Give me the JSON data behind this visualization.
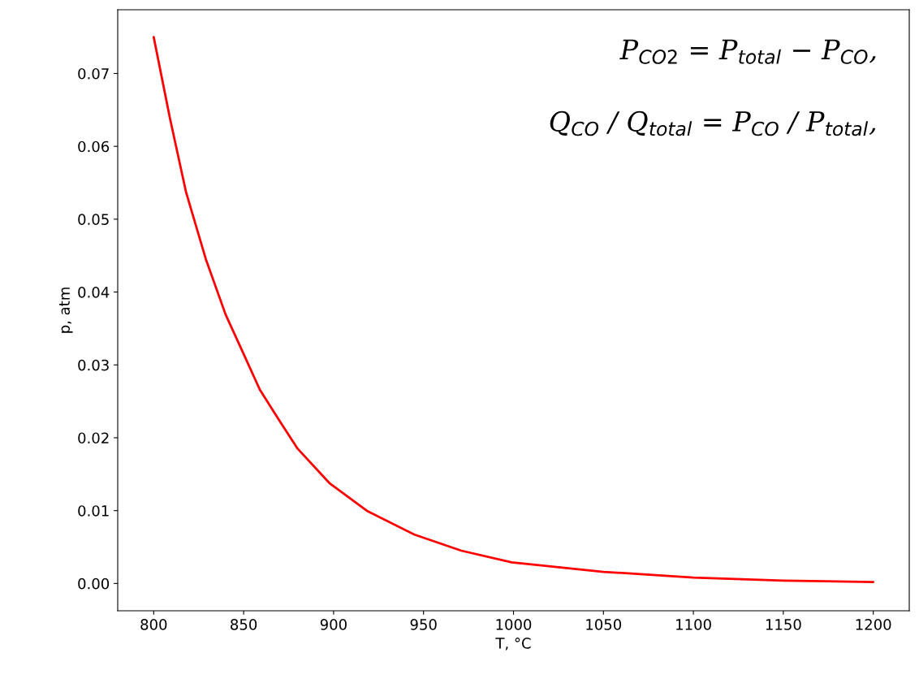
{
  "chart_data": {
    "type": "line",
    "xlabel": "T, °C",
    "ylabel": "p, atm",
    "x": [
      800,
      809,
      818,
      829,
      840,
      850,
      859,
      870,
      880,
      898,
      919,
      945,
      971,
      999,
      1050,
      1100,
      1150,
      1200
    ],
    "series": [
      {
        "color": "#ff0000",
        "values": [
          0.075,
          0.0639,
          0.0537,
          0.0445,
          0.0369,
          0.0315,
          0.0266,
          0.0223,
          0.0185,
          0.0137,
          0.0099,
          0.0067,
          0.0045,
          0.0029,
          0.0016,
          0.0008,
          0.0004,
          0.0002
        ]
      }
    ],
    "xlim": [
      780,
      1220
    ],
    "ylim": [
      -0.00375,
      0.07875
    ],
    "xticks": [
      800,
      850,
      900,
      950,
      1000,
      1050,
      1100,
      1150,
      1200
    ],
    "yticks": [
      {
        "value": 0,
        "label": "0.00"
      },
      {
        "value": 0.01,
        "label": "0.01"
      },
      {
        "value": 0.02,
        "label": "0.02"
      },
      {
        "value": 0.03,
        "label": "0.03"
      },
      {
        "value": 0.04,
        "label": "0.04"
      },
      {
        "value": 0.05,
        "label": "0.05"
      },
      {
        "value": 0.06,
        "label": "0.06"
      },
      {
        "value": 0.07,
        "label": "0.07"
      }
    ],
    "grid": false,
    "annotations": [
      "P$_{CO2}$ = P$_{total}$ − P$_{CO}$,",
      "Q$_{CO}$ / Q$_{total}$ = P$_{CO}$ / P$_{total}$,"
    ]
  }
}
